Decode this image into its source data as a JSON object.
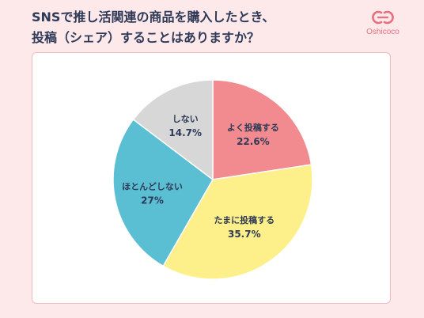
{
  "title_lines": [
    "SNSで推し活関連の商品を購入したとき、",
    "投稿（シェア）することはありますか？"
  ],
  "logo": {
    "text": "Oshicoco",
    "icon": "oshicoco-logo-icon"
  },
  "colors": {
    "background": "#fde8ea",
    "title": "#2e3a57",
    "accent": "#e8717e"
  },
  "chart_data": {
    "type": "pie",
    "start": "12 o'clock, clockwise",
    "slices": [
      {
        "label": "よく投稿する",
        "value": 22.6,
        "value_text": "22.6%",
        "color": "#f28b8f"
      },
      {
        "label": "たまに投稿する",
        "value": 35.7,
        "value_text": "35.7%",
        "color": "#fdf08a"
      },
      {
        "label": "ほとんどしない",
        "value": 27,
        "value_text": "27%",
        "color": "#5bbfd3"
      },
      {
        "label": "しない",
        "value": 14.7,
        "value_text": "14.7%",
        "color": "#d7d7d7"
      }
    ]
  }
}
